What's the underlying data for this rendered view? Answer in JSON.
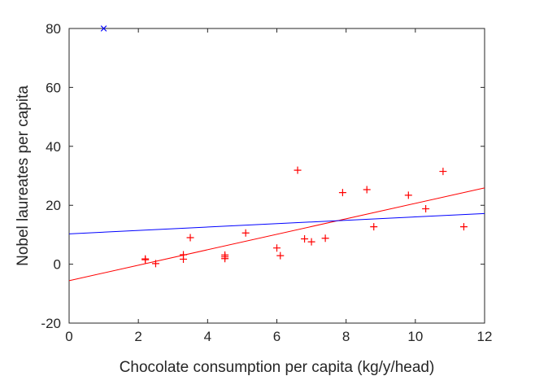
{
  "chart_data": {
    "type": "scatter",
    "title": "",
    "xlabel": "Chocolate consumption per capita (kg/y/head)",
    "ylabel": "Nobel laureates per capita",
    "xlim": [
      0,
      12
    ],
    "ylim": [
      -20,
      80
    ],
    "x_ticks": [
      "0",
      "2",
      "4",
      "6",
      "8",
      "10",
      "12"
    ],
    "y_ticks": [
      "-20",
      "0",
      "20",
      "40",
      "60",
      "80"
    ],
    "grid": false,
    "legend": "none",
    "series": [
      {
        "marker": "plus",
        "color": "#ff0000",
        "points": [
          {
            "x": 2.2,
            "y": 1.5
          },
          {
            "x": 2.2,
            "y": 1.8
          },
          {
            "x": 2.5,
            "y": 0.2
          },
          {
            "x": 3.3,
            "y": 1.7
          },
          {
            "x": 3.3,
            "y": 3.2
          },
          {
            "x": 3.5,
            "y": 9.0
          },
          {
            "x": 4.5,
            "y": 1.9
          },
          {
            "x": 4.5,
            "y": 2.5
          },
          {
            "x": 4.5,
            "y": 3.1
          },
          {
            "x": 5.1,
            "y": 10.6
          },
          {
            "x": 6.0,
            "y": 5.5
          },
          {
            "x": 6.1,
            "y": 2.9
          },
          {
            "x": 6.6,
            "y": 31.9
          },
          {
            "x": 6.8,
            "y": 8.6
          },
          {
            "x": 7.0,
            "y": 7.6
          },
          {
            "x": 7.4,
            "y": 8.8
          },
          {
            "x": 7.9,
            "y": 24.3
          },
          {
            "x": 8.6,
            "y": 25.3
          },
          {
            "x": 8.8,
            "y": 12.7
          },
          {
            "x": 9.8,
            "y": 23.4
          },
          {
            "x": 10.3,
            "y": 18.8
          },
          {
            "x": 10.8,
            "y": 31.5
          },
          {
            "x": 11.4,
            "y": 12.7
          }
        ]
      },
      {
        "marker": "x",
        "color": "#0000ff",
        "points": [
          {
            "x": 1.0,
            "y": 80.0
          }
        ]
      }
    ],
    "fit_lines": [
      {
        "color": "#ff0000",
        "x": [
          0,
          12
        ],
        "y": [
          -5.6,
          25.9
        ]
      },
      {
        "color": "#0000ff",
        "x": [
          0,
          12
        ],
        "y": [
          10.3,
          17.2
        ]
      }
    ]
  }
}
